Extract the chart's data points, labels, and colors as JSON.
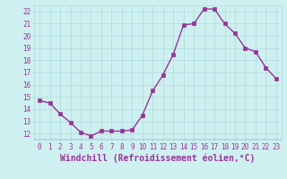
{
  "hours": [
    0,
    1,
    2,
    3,
    4,
    5,
    6,
    7,
    8,
    9,
    10,
    11,
    12,
    13,
    14,
    15,
    16,
    17,
    18,
    19,
    20,
    21,
    22,
    23
  ],
  "values": [
    14.7,
    14.5,
    13.6,
    12.9,
    12.1,
    11.8,
    12.2,
    12.2,
    12.2,
    12.3,
    13.5,
    15.5,
    16.8,
    18.5,
    20.9,
    21.0,
    22.2,
    22.2,
    21.0,
    20.2,
    19.0,
    18.7,
    17.4,
    16.5
  ],
  "line_color": "#993399",
  "marker": "s",
  "markersize": 2.5,
  "linewidth": 1.0,
  "bg_color": "#cff0f0",
  "grid_color": "#aadddd",
  "xlabel": "Windchill (Refroidissement éolien,°C)",
  "xlabel_fontsize": 7,
  "ylim": [
    11.5,
    22.5
  ],
  "xlim": [
    -0.5,
    23.5
  ],
  "yticks": [
    12,
    13,
    14,
    15,
    16,
    17,
    18,
    19,
    20,
    21,
    22
  ],
  "xticks": [
    0,
    1,
    2,
    3,
    4,
    5,
    6,
    7,
    8,
    9,
    10,
    11,
    12,
    13,
    14,
    15,
    16,
    17,
    18,
    19,
    20,
    21,
    22,
    23
  ],
  "tick_fontsize": 5.5,
  "tick_color": "#993399",
  "label_color": "#993399"
}
